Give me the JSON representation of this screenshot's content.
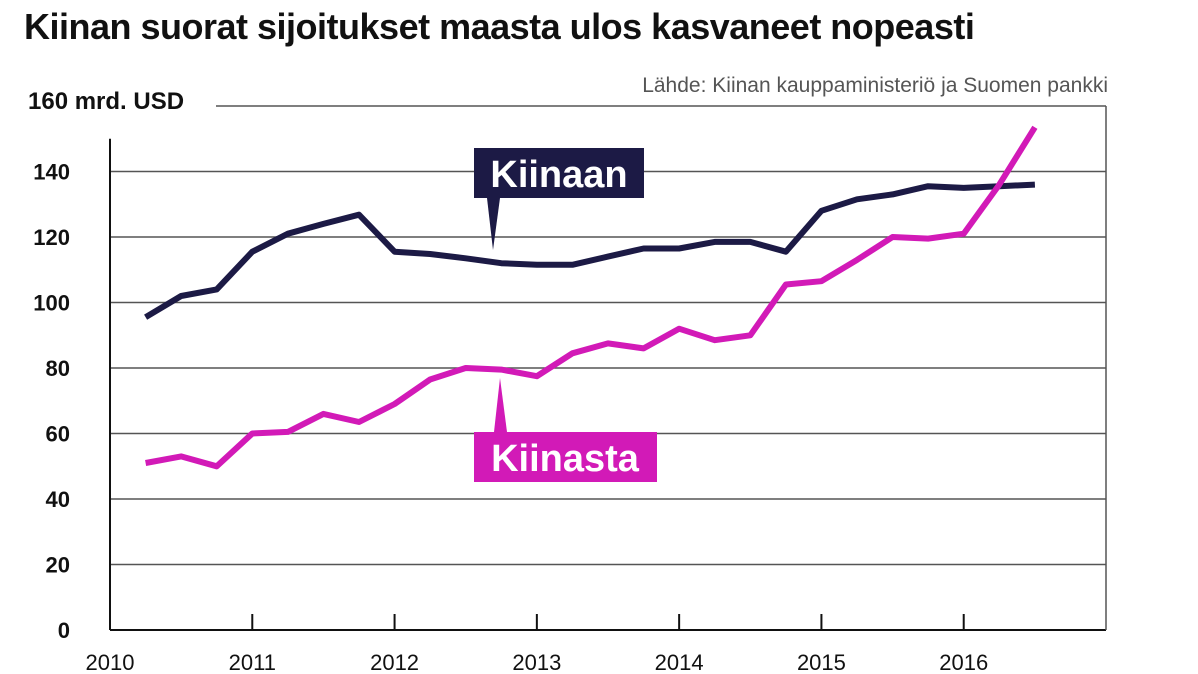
{
  "chart_data": {
    "type": "line",
    "title": "Kiinan suorat sijoitukset maasta ulos kasvaneet nopeasti",
    "source": "Lähde: Kiinan kauppaministeriö ja Suomen pankki",
    "ylabel": "160 mrd. USD",
    "ylim": [
      0,
      160
    ],
    "yticks": [
      "0",
      "20",
      "40",
      "60",
      "80",
      "100",
      "120",
      "140"
    ],
    "xlim": [
      2010,
      2017
    ],
    "xticks": [
      "2010",
      "2011",
      "2012",
      "2013",
      "2014",
      "2015",
      "2016"
    ],
    "grid": true,
    "series": [
      {
        "name": "Kiinaan",
        "color": "#1c1a45",
        "x": [
          2010.25,
          2010.5,
          2010.75,
          2011.0,
          2011.25,
          2011.5,
          2011.75,
          2012.0,
          2012.25,
          2012.5,
          2012.75,
          2013.0,
          2013.25,
          2013.5,
          2013.75,
          2014.0,
          2014.25,
          2014.5,
          2014.75,
          2015.0,
          2015.25,
          2015.5,
          2015.75,
          2016.0,
          2016.25,
          2016.5
        ],
        "values": [
          95.5,
          102,
          104,
          115.5,
          121,
          124,
          126.8,
          115.5,
          114.8,
          113.5,
          112,
          111.5,
          111.5,
          114,
          116.5,
          116.5,
          118.5,
          118.5,
          115.5,
          128,
          131.5,
          133,
          135.5,
          135,
          135.5,
          136
        ]
      },
      {
        "name": "Kiinasta",
        "color": "#d21ab7",
        "x": [
          2010.25,
          2010.5,
          2010.75,
          2011.0,
          2011.25,
          2011.5,
          2011.75,
          2012.0,
          2012.25,
          2012.5,
          2012.75,
          2013.0,
          2013.25,
          2013.5,
          2013.75,
          2014.0,
          2014.25,
          2014.5,
          2014.75,
          2015.0,
          2015.25,
          2015.5,
          2015.75,
          2016.0,
          2016.25,
          2016.5
        ],
        "values": [
          51,
          53,
          50,
          60,
          60.5,
          66,
          63.5,
          69,
          76.5,
          80,
          79.5,
          77.5,
          84.5,
          87.5,
          86,
          92,
          88.5,
          90,
          105.5,
          106.5,
          113,
          120,
          119.5,
          121,
          136,
          153.5
        ]
      }
    ]
  },
  "labels": {
    "kiinaan": "Kiinaan",
    "kiinasta": "Kiinasta"
  }
}
